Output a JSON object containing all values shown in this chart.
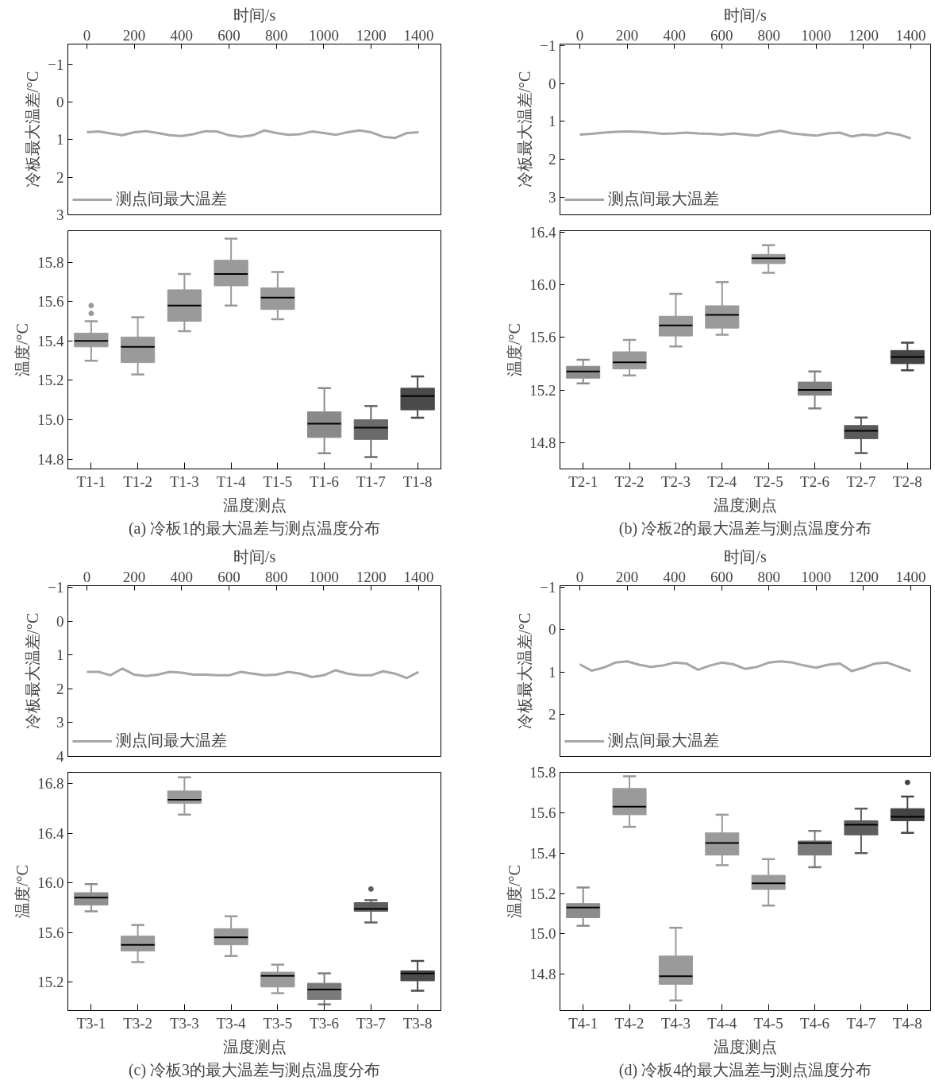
{
  "chart_data": [
    {
      "type": "line",
      "xlabel": "时间/s",
      "ylabel": "冷板最大温差/°C",
      "legend": "bottom left",
      "xlim": [
        -80,
        1494
      ],
      "xticks": [
        0,
        200,
        400,
        600,
        800,
        1000,
        1200,
        1400
      ],
      "ylim": [
        3,
        -1.55
      ],
      "yticks": [
        {
          "value": -1,
          "label": "−1"
        },
        0,
        1,
        2,
        3
      ],
      "series": [
        {
          "name": "测点间最大温差",
          "color": "#a6a6a6",
          "x": [
            0,
            50,
            100,
            150,
            200,
            250,
            300,
            350,
            400,
            450,
            500,
            550,
            600,
            650,
            700,
            750,
            800,
            850,
            900,
            950,
            1000,
            1050,
            1100,
            1150,
            1200,
            1250,
            1300,
            1350,
            1400
          ],
          "values": [
            0.8,
            0.78,
            0.83,
            0.88,
            0.8,
            0.77,
            0.82,
            0.88,
            0.9,
            0.85,
            0.77,
            0.78,
            0.88,
            0.92,
            0.88,
            0.75,
            0.82,
            0.87,
            0.85,
            0.78,
            0.82,
            0.87,
            0.8,
            0.75,
            0.8,
            0.92,
            0.95,
            0.82,
            0.8
          ]
        }
      ]
    },
    {
      "type": "box",
      "xlabel": "温度测点",
      "ylabel": "温度/°C",
      "annotations": [
        "(a) 冷板1的最大温差与测点温度分布"
      ],
      "categories": [
        "T1-1",
        "T1-2",
        "T1-3",
        "T1-4",
        "T1-5",
        "T1-6",
        "T1-7",
        "T1-8"
      ],
      "colors": [
        "#9a9a9a",
        "#9a9a9a",
        "#9a9a9a",
        "#9a9a9a",
        "#9a9a9a",
        "#8a8a8a",
        "#6b6b6b",
        "#4a4a4a"
      ],
      "ylim": [
        14.75,
        15.96
      ],
      "yticks": [
        14.8,
        {
          "value": 15,
          "label": "15.0"
        },
        15.2,
        15.4,
        15.6,
        15.8
      ],
      "boxes": [
        {
          "low": 15.3,
          "q1": 15.37,
          "median": 15.4,
          "q3": 15.44,
          "high": 15.5,
          "outliers": [
            15.54,
            15.58
          ]
        },
        {
          "low": 15.23,
          "q1": 15.29,
          "median": 15.37,
          "q3": 15.42,
          "high": 15.52
        },
        {
          "low": 15.45,
          "q1": 15.5,
          "median": 15.58,
          "q3": 15.66,
          "high": 15.74
        },
        {
          "low": 15.58,
          "q1": 15.68,
          "median": 15.74,
          "q3": 15.81,
          "high": 15.92
        },
        {
          "low": 15.51,
          "q1": 15.56,
          "median": 15.62,
          "q3": 15.67,
          "high": 15.75
        },
        {
          "low": 14.83,
          "q1": 14.91,
          "median": 14.98,
          "q3": 15.04,
          "high": 15.16
        },
        {
          "low": 14.81,
          "q1": 14.9,
          "median": 14.96,
          "q3": 15.0,
          "high": 15.07
        },
        {
          "low": 15.01,
          "q1": 15.05,
          "median": 15.12,
          "q3": 15.16,
          "high": 15.22
        }
      ]
    },
    {
      "type": "line",
      "xlabel": "时间/s",
      "ylabel": "冷板最大温差/°C",
      "legend": "bottom left",
      "xlim": [
        -84,
        1484
      ],
      "xticks": [
        0,
        200,
        400,
        600,
        800,
        1000,
        1200,
        1400
      ],
      "ylim": [
        3.47,
        -1.04
      ],
      "yticks": [
        {
          "value": -1,
          "label": "−1"
        },
        0,
        1,
        2,
        3
      ],
      "series": [
        {
          "name": "测点间最大温差",
          "color": "#a6a6a6",
          "x": [
            0,
            50,
            100,
            150,
            200,
            250,
            300,
            350,
            400,
            450,
            500,
            550,
            600,
            650,
            700,
            750,
            800,
            850,
            900,
            950,
            1000,
            1050,
            1100,
            1150,
            1200,
            1250,
            1300,
            1350,
            1400
          ],
          "values": [
            1.35,
            1.33,
            1.3,
            1.28,
            1.27,
            1.28,
            1.3,
            1.33,
            1.32,
            1.3,
            1.32,
            1.33,
            1.35,
            1.32,
            1.35,
            1.38,
            1.3,
            1.25,
            1.32,
            1.35,
            1.38,
            1.32,
            1.3,
            1.4,
            1.35,
            1.38,
            1.3,
            1.35,
            1.45
          ]
        }
      ]
    },
    {
      "type": "box",
      "xlabel": "温度测点",
      "ylabel": "温度/°C",
      "annotations": [
        "(b) 冷板2的最大温差与测点温度分布"
      ],
      "categories": [
        "T2-1",
        "T2-2",
        "T2-3",
        "T2-4",
        "T2-5",
        "T2-6",
        "T2-7",
        "T2-8"
      ],
      "colors": [
        "#8c8c8c",
        "#9a9a9a",
        "#9a9a9a",
        "#9a9a9a",
        "#9a9a9a",
        "#808080",
        "#5a5a5a",
        "#454545"
      ],
      "ylim": [
        14.6,
        16.41
      ],
      "yticks": [
        14.8,
        15.2,
        15.6,
        {
          "value": 16,
          "label": "16.0"
        },
        16.4
      ],
      "boxes": [
        {
          "low": 15.25,
          "q1": 15.29,
          "median": 15.34,
          "q3": 15.38,
          "high": 15.43
        },
        {
          "low": 15.31,
          "q1": 15.36,
          "median": 15.41,
          "q3": 15.49,
          "high": 15.58
        },
        {
          "low": 15.53,
          "q1": 15.61,
          "median": 15.69,
          "q3": 15.76,
          "high": 15.93
        },
        {
          "low": 15.62,
          "q1": 15.67,
          "median": 15.77,
          "q3": 15.84,
          "high": 16.02
        },
        {
          "low": 16.09,
          "q1": 16.16,
          "median": 16.2,
          "q3": 16.23,
          "high": 16.3
        },
        {
          "low": 15.06,
          "q1": 15.16,
          "median": 15.2,
          "q3": 15.26,
          "high": 15.34
        },
        {
          "low": 14.72,
          "q1": 14.83,
          "median": 14.89,
          "q3": 14.93,
          "high": 14.99
        },
        {
          "low": 15.35,
          "q1": 15.4,
          "median": 15.45,
          "q3": 15.5,
          "high": 15.56
        }
      ]
    },
    {
      "type": "line",
      "xlabel": "时间/s",
      "ylabel": "冷板最大温差/°C",
      "legend": "bottom left",
      "xlim": [
        -80,
        1494
      ],
      "xticks": [
        0,
        200,
        400,
        600,
        800,
        1000,
        1200,
        1400
      ],
      "ylim": [
        4,
        -1.05
      ],
      "yticks": [
        {
          "value": -1,
          "label": "−1"
        },
        0,
        1,
        2,
        3,
        4
      ],
      "series": [
        {
          "name": "测点间最大温差",
          "color": "#a6a6a6",
          "x": [
            0,
            50,
            100,
            150,
            200,
            250,
            300,
            350,
            400,
            450,
            500,
            550,
            600,
            650,
            700,
            750,
            800,
            850,
            900,
            950,
            1000,
            1050,
            1100,
            1150,
            1200,
            1250,
            1300,
            1350,
            1400
          ],
          "values": [
            1.5,
            1.5,
            1.6,
            1.4,
            1.58,
            1.62,
            1.58,
            1.5,
            1.52,
            1.58,
            1.58,
            1.6,
            1.6,
            1.5,
            1.55,
            1.6,
            1.58,
            1.5,
            1.55,
            1.65,
            1.6,
            1.45,
            1.55,
            1.6,
            1.6,
            1.48,
            1.55,
            1.68,
            1.5
          ]
        }
      ]
    },
    {
      "type": "box",
      "xlabel": "温度测点",
      "ylabel": "温度/°C",
      "annotations": [
        "(c) 冷板3的最大温差与测点温度分布"
      ],
      "categories": [
        "T3-1",
        "T3-2",
        "T3-3",
        "T3-4",
        "T3-5",
        "T3-6",
        "T3-7",
        "T3-8"
      ],
      "colors": [
        "#8f8f8f",
        "#9a9a9a",
        "#9a9a9a",
        "#9a9a9a",
        "#9a9a9a",
        "#7a7a7a",
        "#5e5e5e",
        "#4a4a4a"
      ],
      "ylim": [
        14.97,
        16.89
      ],
      "yticks": [
        15.2,
        15.6,
        {
          "value": 16,
          "label": "16.0"
        },
        16.4,
        16.8
      ],
      "boxes": [
        {
          "low": 15.77,
          "q1": 15.82,
          "median": 15.88,
          "q3": 15.92,
          "high": 15.99
        },
        {
          "low": 15.36,
          "q1": 15.45,
          "median": 15.5,
          "q3": 15.57,
          "high": 15.66
        },
        {
          "low": 16.55,
          "q1": 16.64,
          "median": 16.67,
          "q3": 16.74,
          "high": 16.85
        },
        {
          "low": 15.41,
          "q1": 15.5,
          "median": 15.56,
          "q3": 15.63,
          "high": 15.73
        },
        {
          "low": 15.11,
          "q1": 15.16,
          "median": 15.25,
          "q3": 15.28,
          "high": 15.34
        },
        {
          "low": 15.02,
          "q1": 15.06,
          "median": 15.14,
          "q3": 15.19,
          "high": 15.27
        },
        {
          "low": 15.68,
          "q1": 15.77,
          "median": 15.79,
          "q3": 15.84,
          "high": 15.86,
          "outliers": [
            15.95
          ]
        },
        {
          "low": 15.13,
          "q1": 15.21,
          "median": 15.27,
          "q3": 15.29,
          "high": 15.37
        }
      ]
    },
    {
      "type": "line",
      "xlabel": "时间/s",
      "ylabel": "冷板最大温差/°C",
      "legend": "bottom left",
      "xlim": [
        -84,
        1484
      ],
      "xticks": [
        0,
        200,
        400,
        600,
        800,
        1000,
        1200,
        1400
      ],
      "ylim": [
        3,
        -1.04
      ],
      "yticks": [
        {
          "value": -1,
          "label": "−1"
        },
        0,
        1,
        2
      ],
      "series": [
        {
          "name": "测点间最大温差",
          "color": "#a6a6a6",
          "x": [
            0,
            50,
            100,
            150,
            200,
            250,
            300,
            350,
            400,
            450,
            500,
            550,
            600,
            650,
            700,
            750,
            800,
            850,
            900,
            950,
            1000,
            1050,
            1100,
            1150,
            1200,
            1250,
            1300,
            1350,
            1400
          ],
          "values": [
            0.82,
            0.97,
            0.9,
            0.78,
            0.75,
            0.83,
            0.88,
            0.85,
            0.78,
            0.8,
            0.95,
            0.85,
            0.78,
            0.82,
            0.93,
            0.88,
            0.78,
            0.75,
            0.78,
            0.85,
            0.9,
            0.83,
            0.8,
            0.98,
            0.9,
            0.8,
            0.78,
            0.88,
            0.98
          ]
        }
      ]
    },
    {
      "type": "box",
      "xlabel": "温度测点",
      "ylabel": "温度/°C",
      "annotations": [
        "(d) 冷板4的最大温差与测点温度分布"
      ],
      "categories": [
        "T4-1",
        "T4-2",
        "T4-3",
        "T4-4",
        "T4-5",
        "T4-6",
        "T4-7",
        "T4-8"
      ],
      "colors": [
        "#8c8c8c",
        "#9a9a9a",
        "#9a9a9a",
        "#9a9a9a",
        "#9a9a9a",
        "#7a7a7a",
        "#5e5e5e",
        "#454545"
      ],
      "ylim": [
        14.62,
        15.8
      ],
      "yticks": [
        14.8,
        {
          "value": 15,
          "label": "15.0"
        },
        15.2,
        15.4,
        15.6,
        15.8
      ],
      "boxes": [
        {
          "low": 15.04,
          "q1": 15.08,
          "median": 15.13,
          "q3": 15.15,
          "high": 15.23
        },
        {
          "low": 15.53,
          "q1": 15.59,
          "median": 15.63,
          "q3": 15.72,
          "high": 15.78
        },
        {
          "low": 14.67,
          "q1": 14.75,
          "median": 14.79,
          "q3": 14.89,
          "high": 15.03
        },
        {
          "low": 15.34,
          "q1": 15.39,
          "median": 15.45,
          "q3": 15.5,
          "high": 15.59
        },
        {
          "low": 15.14,
          "q1": 15.22,
          "median": 15.25,
          "q3": 15.29,
          "high": 15.37
        },
        {
          "low": 15.33,
          "q1": 15.39,
          "median": 15.45,
          "q3": 15.46,
          "high": 15.51
        },
        {
          "low": 15.4,
          "q1": 15.49,
          "median": 15.54,
          "q3": 15.56,
          "high": 15.62
        },
        {
          "low": 15.5,
          "q1": 15.56,
          "median": 15.58,
          "q3": 15.62,
          "high": 15.68,
          "outliers": [
            15.75
          ]
        }
      ]
    }
  ]
}
